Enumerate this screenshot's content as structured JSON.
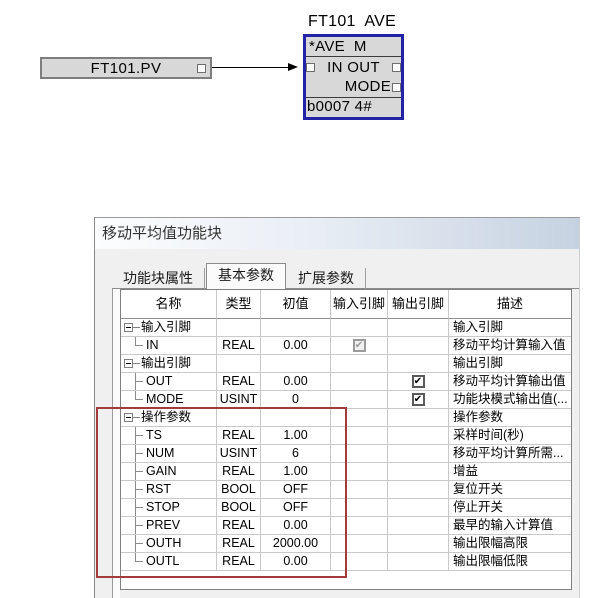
{
  "diagram": {
    "source_block": {
      "label": "FT101.PV"
    },
    "function_block": {
      "title": "FT101  AVE",
      "type_row": "*AVE  M",
      "pins_row": "IN OUT",
      "mode_row": "MODE",
      "address_row": "b0007 4#",
      "border_color": "#2323a6"
    }
  },
  "dialog": {
    "title": "移动平均值功能块",
    "tabs": [
      {
        "label": "功能块属性",
        "active": false
      },
      {
        "label": "基本参数",
        "active": true
      },
      {
        "label": "扩展参数",
        "active": false
      }
    ],
    "table": {
      "columns": [
        "名称",
        "类型",
        "初值",
        "输入引脚",
        "输出引脚",
        "描述"
      ],
      "rows": [
        {
          "kind": "group",
          "name": "输入引脚",
          "type": "",
          "init": "",
          "in_pin": "",
          "out_pin": "",
          "desc": "输入引脚"
        },
        {
          "kind": "child-last",
          "name": "IN",
          "type": "REAL",
          "init": "0.00",
          "in_pin": "checked-disabled",
          "out_pin": "",
          "desc": "移动平均计算输入值"
        },
        {
          "kind": "group",
          "name": "输出引脚",
          "type": "",
          "init": "",
          "in_pin": "",
          "out_pin": "",
          "desc": "输出引脚"
        },
        {
          "kind": "child",
          "name": "OUT",
          "type": "REAL",
          "init": "0.00",
          "in_pin": "",
          "out_pin": "checked",
          "desc": "移动平均计算输出值"
        },
        {
          "kind": "child-last",
          "name": "MODE",
          "type": "USINT",
          "init": "0",
          "in_pin": "",
          "out_pin": "checked",
          "desc": "功能块模式输出值(..."
        },
        {
          "kind": "group",
          "name": "操作参数",
          "type": "",
          "init": "",
          "in_pin": "",
          "out_pin": "",
          "desc": "操作参数"
        },
        {
          "kind": "child",
          "name": "TS",
          "type": "REAL",
          "init": "1.00",
          "in_pin": "",
          "out_pin": "",
          "desc": "采样时间(秒)"
        },
        {
          "kind": "child",
          "name": "NUM",
          "type": "USINT",
          "init": "6",
          "in_pin": "",
          "out_pin": "",
          "desc": "移动平均计算所需..."
        },
        {
          "kind": "child",
          "name": "GAIN",
          "type": "REAL",
          "init": "1.00",
          "in_pin": "",
          "out_pin": "",
          "desc": "增益"
        },
        {
          "kind": "child",
          "name": "RST",
          "type": "BOOL",
          "init": "OFF",
          "in_pin": "",
          "out_pin": "",
          "desc": "复位开关"
        },
        {
          "kind": "child",
          "name": "STOP",
          "type": "BOOL",
          "init": "OFF",
          "in_pin": "",
          "out_pin": "",
          "desc": "停止开关"
        },
        {
          "kind": "child",
          "name": "PREV",
          "type": "REAL",
          "init": "0.00",
          "in_pin": "",
          "out_pin": "",
          "desc": "最早的输入计算值"
        },
        {
          "kind": "child",
          "name": "OUTH",
          "type": "REAL",
          "init": "2000.00",
          "in_pin": "",
          "out_pin": "",
          "desc": "输出限幅高限"
        },
        {
          "kind": "child-last",
          "name": "OUTL",
          "type": "REAL",
          "init": "0.00",
          "in_pin": "",
          "out_pin": "",
          "desc": "输出限幅低限"
        }
      ]
    },
    "annotation_color": "#a23c3c"
  }
}
